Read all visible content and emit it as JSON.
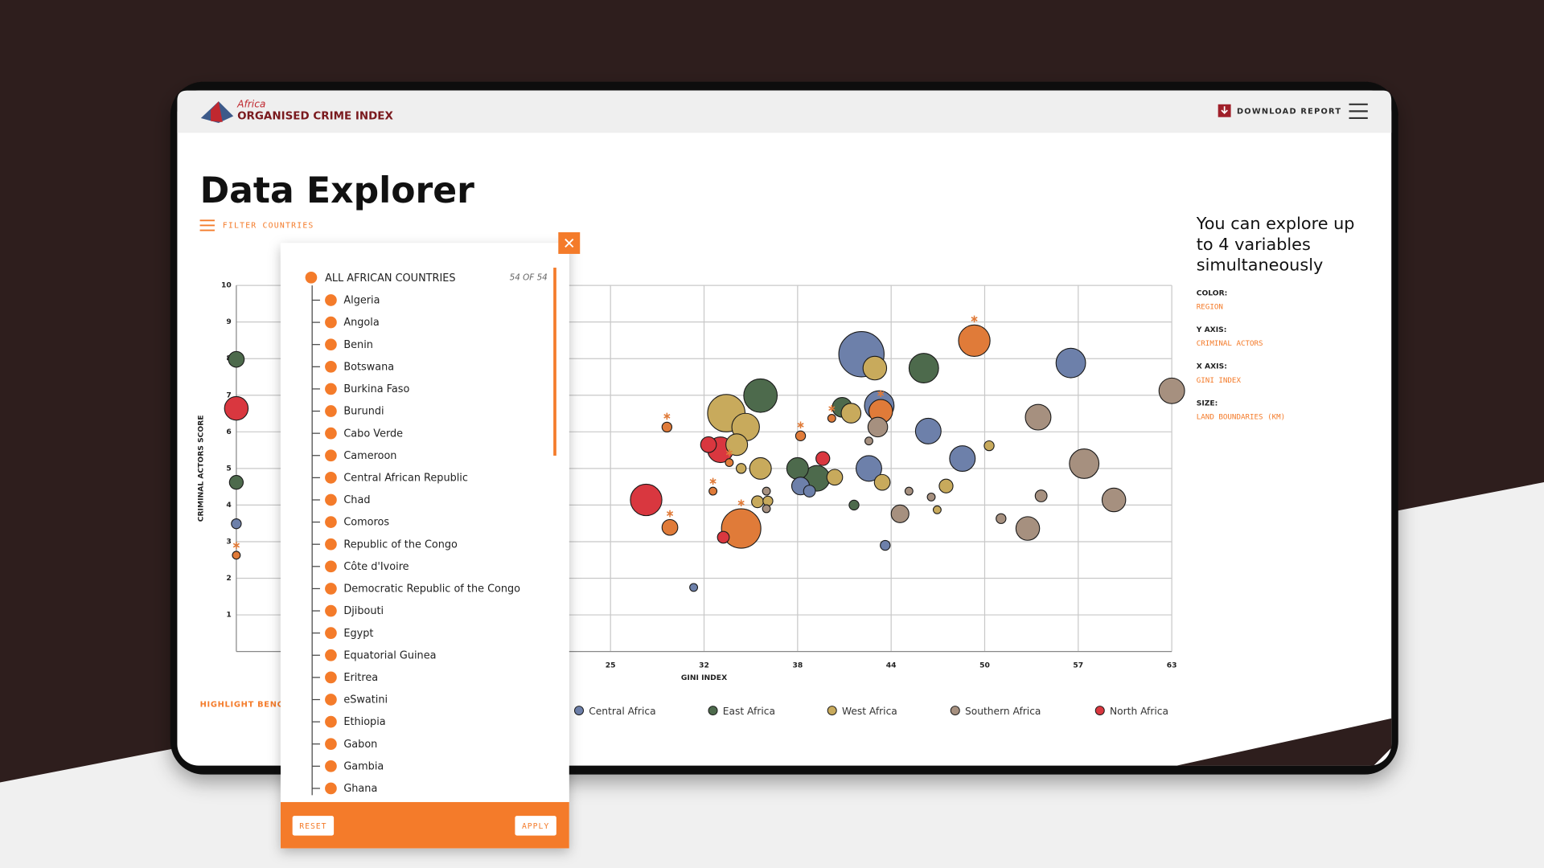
{
  "header": {
    "logo_top": "Africa",
    "logo_main": "ORGANISED CRIME INDEX",
    "download": "DOWNLOAD REPORT"
  },
  "page": {
    "title": "Data Explorer",
    "filter": "FILTER COUNTRIES",
    "highlight": "HIGHLIGHT BENCHM"
  },
  "intro": [
    "You can explore up",
    "to 4 variables",
    "simultaneously"
  ],
  "settings": [
    {
      "label": "COLOR:",
      "value": "REGION"
    },
    {
      "label": "Y AXIS:",
      "value": "CRIMINAL ACTORS"
    },
    {
      "label": "X AXIS:",
      "value": "GINI INDEX"
    },
    {
      "label": "SIZE:",
      "value": "LAND BOUNDARIES (KM)"
    }
  ],
  "filter_panel": {
    "all": "ALL AFRICAN COUNTRIES",
    "count": "54 OF 54",
    "countries": [
      "Algeria",
      "Angola",
      "Benin",
      "Botswana",
      "Burkina Faso",
      "Burundi",
      "Cabo Verde",
      "Cameroon",
      "Central African Republic",
      "Chad",
      "Comoros",
      "Republic of the Congo",
      "Côte d'Ivoire",
      "Democratic Republic of the Congo",
      "Djibouti",
      "Egypt",
      "Equatorial Guinea",
      "Eritrea",
      "eSwatini",
      "Ethiopia",
      "Gabon",
      "Gambia",
      "Ghana"
    ],
    "reset": "RESET",
    "apply": "APPLY"
  },
  "chart_data": {
    "type": "bubble",
    "x_label": "GINI INDEX",
    "y_label": "CRIMINAL ACTORS SCORE",
    "xlim": [
      0,
      63
    ],
    "ylim": [
      0,
      10
    ],
    "xticks": [
      {
        "value": 25.2,
        "label": "25"
      },
      {
        "value": 31.5,
        "label": "32"
      },
      {
        "value": 37.8,
        "label": "38"
      },
      {
        "value": 44.1,
        "label": "44"
      },
      {
        "value": 50.4,
        "label": "50"
      },
      {
        "value": 56.7,
        "label": "57"
      },
      63
    ],
    "yticks": [
      1,
      2,
      3,
      4,
      5,
      6,
      7,
      8,
      9,
      10
    ],
    "grid": true,
    "series": [
      {
        "name": "Central Africa",
        "color": "#6d80aa",
        "x": [
          42.1,
          56.2,
          46.6,
          48.9,
          42.6,
          38.0,
          38.6,
          43.3,
          0,
          43.7,
          30.8
        ],
        "values": [
          8.12,
          7.88,
          6.02,
          5.27,
          5.0,
          4.52,
          4.38,
          6.72,
          3.49,
          2.9,
          1.75
        ],
        "sizes": [
          23,
          15,
          13,
          13,
          13,
          9,
          6,
          15,
          5,
          5,
          4
        ]
      },
      {
        "name": "East Africa",
        "color": "#4d6a4c",
        "x": [
          0,
          35.3,
          46.3,
          37.8,
          39.1,
          40.8,
          41.6,
          0
        ],
        "values": [
          7.98,
          6.99,
          7.74,
          5.0,
          4.73,
          6.67,
          4.0,
          4.62
        ],
        "sizes": [
          8,
          17,
          15,
          11,
          13,
          10,
          5,
          7
        ]
      },
      {
        "name": "West Africa",
        "color": "#c8aa5c",
        "x": [
          33.0,
          34.3,
          33.7,
          35.3,
          34.0,
          40.3,
          43.5,
          47.8,
          43.0,
          41.4,
          50.7,
          47.2,
          35.1,
          35.8
        ],
        "values": [
          6.51,
          6.13,
          5.65,
          5.0,
          5.0,
          4.76,
          4.62,
          4.52,
          7.74,
          6.51,
          5.62,
          3.87,
          4.09,
          4.11
        ],
        "sizes": [
          19,
          14,
          11,
          11,
          5,
          8,
          8,
          7,
          12,
          10,
          5,
          4,
          6,
          5
        ]
      },
      {
        "name": "Southern Africa",
        "color": "#a6907f",
        "x": [
          63.0,
          54.0,
          57.1,
          59.1,
          53.3,
          44.7,
          54.2,
          51.5,
          43.2,
          45.3,
          46.8,
          42.6,
          35.7,
          35.7
        ],
        "values": [
          7.12,
          6.4,
          5.13,
          4.14,
          3.36,
          3.76,
          4.25,
          3.63,
          6.13,
          4.38,
          4.22,
          5.75,
          4.38,
          3.9
        ],
        "sizes": [
          13,
          13,
          15,
          12,
          12,
          9,
          6,
          5,
          10,
          4,
          4,
          4,
          4,
          4
        ]
      },
      {
        "name": "North Africa",
        "color": "#d9373f",
        "x": [
          27.6,
          32.6,
          31.8,
          39.5,
          32.8,
          0
        ],
        "values": [
          4.14,
          5.51,
          5.65,
          5.27,
          3.12,
          6.64
        ],
        "sizes": [
          16,
          13,
          8,
          7,
          6,
          12
        ]
      },
      {
        "color": "#e07b39",
        "x": [
          49.7,
          34.0,
          43.4,
          29.2,
          29.0,
          32.1,
          38.0,
          40.1,
          0,
          33.2
        ],
        "values": [
          8.49,
          3.36,
          6.56,
          3.39,
          6.13,
          4.38,
          5.89,
          6.37,
          2.63,
          5.16
        ],
        "sizes": [
          16,
          20,
          12,
          8,
          5,
          4,
          5,
          4,
          4,
          4
        ]
      }
    ]
  }
}
